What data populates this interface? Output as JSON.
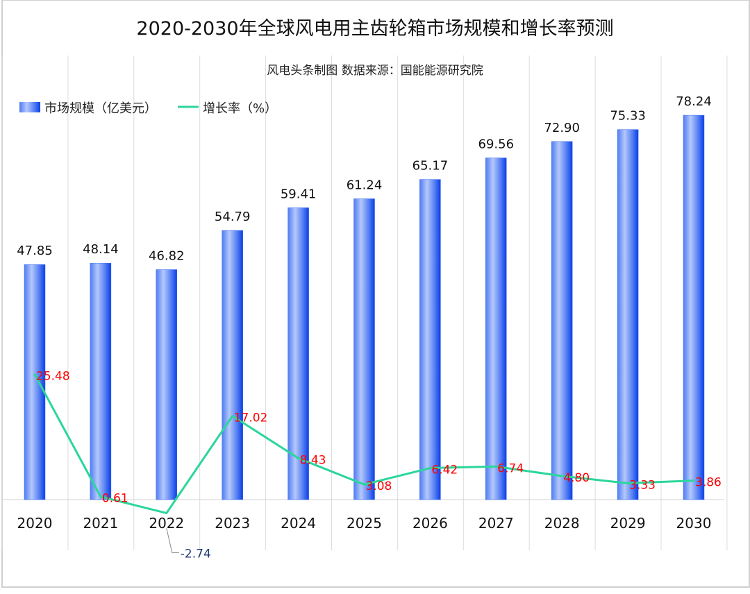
{
  "chart_data": {
    "type": "bar+line",
    "title": "2020-2030年全球风电用主齿轮箱市场规模和增长率预测",
    "subtitle": "风电头条制图  数据来源：国能能源研究院",
    "categories": [
      "2020",
      "2021",
      "2022",
      "2023",
      "2024",
      "2025",
      "2026",
      "2027",
      "2028",
      "2029",
      "2030"
    ],
    "series": [
      {
        "name": "市场规模（亿美元）",
        "type": "bar",
        "color": "#3a6cf0",
        "values": [
          47.85,
          48.14,
          46.82,
          54.79,
          59.41,
          61.24,
          65.17,
          69.56,
          72.9,
          75.33,
          78.24
        ],
        "labels": [
          "47.85",
          "48.14",
          "46.82",
          "54.79",
          "59.41",
          "61.24",
          "65.17",
          "69.56",
          "72.90",
          "75.33",
          "78.24"
        ]
      },
      {
        "name": "增长率（%）",
        "type": "line",
        "color": "#2bd69a",
        "values": [
          25.48,
          0.61,
          -2.74,
          17.02,
          8.43,
          3.08,
          6.42,
          6.74,
          4.8,
          3.33,
          3.86
        ],
        "labels": [
          "25.48",
          "0.61",
          "-2.74",
          "17.02",
          "8.43",
          "3.08",
          "6.42",
          "6.74",
          "4.80",
          "3.33",
          "3.86"
        ]
      }
    ],
    "ylim": [
      -5,
      80
    ],
    "grid": "vertical",
    "legend": "top-left"
  }
}
